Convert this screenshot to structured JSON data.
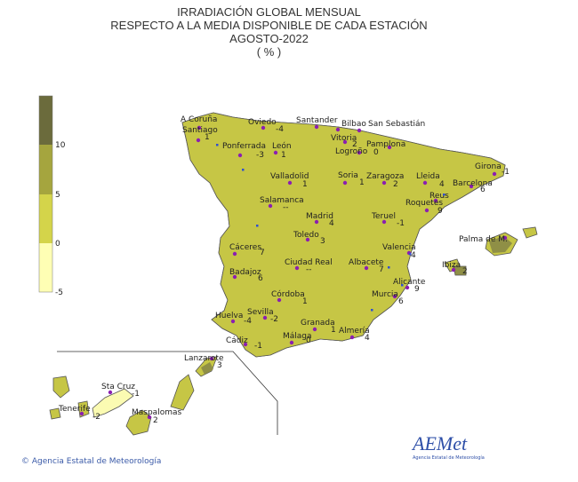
{
  "title": {
    "line1": "IRRADIACIÓN GLOBAL MENSUAL",
    "line2": "RESPECTO A LA MEDIA DISPONIBLE DE CADA ESTACIÓN",
    "line3": "AGOSTO-2022",
    "line4": "( % )"
  },
  "legend": {
    "ticks": [
      "10",
      "5",
      "0",
      "-5"
    ],
    "colors": [
      "#6b6b3c",
      "#a5a53e",
      "#d4d44a",
      "#fefeb4"
    ]
  },
  "colors": {
    "land_base": "#c6c645",
    "high": "#8f8f46",
    "low": "#fbfbb2",
    "station_dot": "#8b1fb0",
    "border": "#555555"
  },
  "stations": [
    {
      "name": "A Coruña",
      "value": ""
    },
    {
      "name": "Santiago",
      "value": "1"
    },
    {
      "name": "Oviedo",
      "value": "-4"
    },
    {
      "name": "Santander",
      "value": ""
    },
    {
      "name": "Bilbao",
      "value": ""
    },
    {
      "name": "San Sebastián",
      "value": ""
    },
    {
      "name": "Ponferrada",
      "value": "-3"
    },
    {
      "name": "León",
      "value": "1"
    },
    {
      "name": "Vitoria",
      "value": "2"
    },
    {
      "name": "Pamplona",
      "value": ""
    },
    {
      "name": "Logroño",
      "value": "0"
    },
    {
      "name": "Girona",
      "value": "-1"
    },
    {
      "name": "Valladolid",
      "value": "1"
    },
    {
      "name": "Soria",
      "value": "1"
    },
    {
      "name": "Zaragoza",
      "value": "2"
    },
    {
      "name": "Lleida",
      "value": "4"
    },
    {
      "name": "Barcelona",
      "value": "6"
    },
    {
      "name": "Reus",
      "value": ""
    },
    {
      "name": "Roquetes",
      "value": "9"
    },
    {
      "name": "Salamanca",
      "value": "--"
    },
    {
      "name": "Madrid",
      "value": "4"
    },
    {
      "name": "Teruel",
      "value": "-1"
    },
    {
      "name": "Toledo",
      "value": "3"
    },
    {
      "name": "Cáceres",
      "value": "7"
    },
    {
      "name": "Valencia",
      "value": "4"
    },
    {
      "name": "Palma de M.",
      "value": ""
    },
    {
      "name": "Ibiza",
      "value": "2"
    },
    {
      "name": "Ciudad Real",
      "value": "--"
    },
    {
      "name": "Albacete",
      "value": "7"
    },
    {
      "name": "Badajoz",
      "value": "6"
    },
    {
      "name": "Alicante",
      "value": "9"
    },
    {
      "name": "Murcia",
      "value": "6"
    },
    {
      "name": "Córdoba",
      "value": "1"
    },
    {
      "name": "Huelva",
      "value": "-4"
    },
    {
      "name": "Sevilla",
      "value": "-2"
    },
    {
      "name": "Granada",
      "value": "1"
    },
    {
      "name": "Almería",
      "value": "4"
    },
    {
      "name": "Málaga",
      "value": "0"
    },
    {
      "name": "Cádiz",
      "value": "-1"
    },
    {
      "name": "Lanzarote",
      "value": "3"
    },
    {
      "name": "Sta Cruz",
      "value": "-1"
    },
    {
      "name": "Tenerife",
      "value": "-2"
    },
    {
      "name": "Maspalomas",
      "value": "2"
    }
  ],
  "footer": "© Agencia Estatal de Meteorología",
  "logo": {
    "text": "AEMet",
    "subtitle": "Agencia Estatal de Meteorología"
  }
}
